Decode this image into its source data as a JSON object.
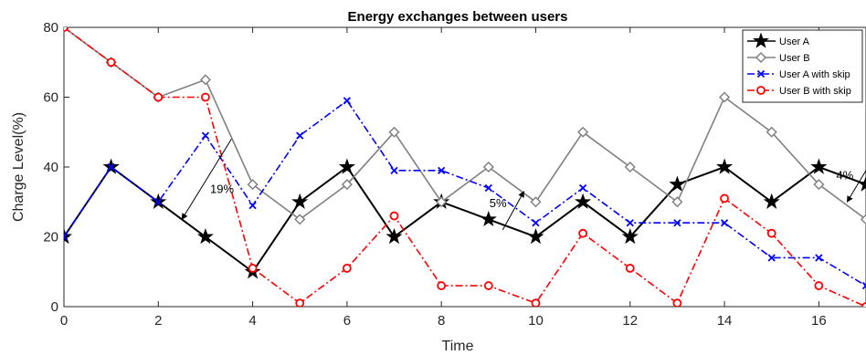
{
  "chart_data": {
    "type": "line",
    "title": "Energy exchanges between users",
    "xlabel": "Time",
    "ylabel": "Charge Level(%)",
    "xlim": [
      0,
      17
    ],
    "ylim": [
      0,
      80
    ],
    "xticks": [
      0,
      2,
      4,
      6,
      8,
      10,
      12,
      14,
      16
    ],
    "yticks": [
      0,
      20,
      40,
      60,
      80
    ],
    "grid": false,
    "legend_position": "top-right",
    "series": [
      {
        "name": "User A",
        "color": "#000000",
        "dash": "solid",
        "marker": "star",
        "x": [
          0,
          1,
          2,
          3,
          4,
          5,
          6,
          7,
          8,
          9,
          10,
          11,
          12,
          13,
          14,
          15,
          16,
          17
        ],
        "y": [
          20,
          40,
          30,
          20,
          10,
          30,
          40,
          20,
          30,
          25,
          20,
          30,
          20,
          35,
          40,
          30,
          40,
          35
        ]
      },
      {
        "name": "User B",
        "color": "#808080",
        "dash": "solid",
        "marker": "diamond",
        "x": [
          0,
          1,
          2,
          3,
          4,
          5,
          6,
          7,
          8,
          9,
          10,
          11,
          12,
          13,
          14,
          15,
          16,
          17
        ],
        "y": [
          80,
          70,
          60,
          65,
          35,
          25,
          35,
          50,
          30,
          40,
          30,
          50,
          40,
          30,
          60,
          50,
          35,
          25
        ]
      },
      {
        "name": "User A with skip",
        "color": "#0000ff",
        "dash": "dashdot",
        "marker": "x",
        "x": [
          0,
          1,
          2,
          3,
          4,
          5,
          6,
          7,
          8,
          9,
          10,
          11,
          12,
          13,
          14,
          15,
          16,
          17
        ],
        "y": [
          20,
          40,
          30,
          49,
          29,
          49,
          59,
          39,
          39,
          34,
          24,
          34,
          24,
          24,
          24,
          14,
          14,
          6
        ]
      },
      {
        "name": "User B with skip",
        "color": "#ff0000",
        "dash": "dashdot",
        "marker": "circle",
        "x": [
          0,
          1,
          2,
          3,
          4,
          5,
          6,
          7,
          8,
          9,
          10,
          11,
          12,
          13,
          14,
          15,
          16,
          17
        ],
        "y": [
          80,
          70,
          60,
          60,
          11,
          1,
          11,
          26,
          6,
          6,
          1,
          21,
          11,
          1,
          31,
          21,
          6,
          0
        ]
      }
    ],
    "annotations": [
      {
        "text": "19%",
        "text_at": [
          3.35,
          32.5
        ],
        "arrow_from": [
          3.55,
          48
        ],
        "arrow_to": [
          2.5,
          25
        ]
      },
      {
        "text": "5%",
        "text_at": [
          9.2,
          28.5
        ],
        "arrow_from": [
          9.3,
          22
        ],
        "arrow_to": [
          9.75,
          33
        ]
      },
      {
        "text": "4%",
        "text_at": [
          16.55,
          36.5
        ],
        "arrow_from": [
          17,
          39
        ],
        "arrow_to": [
          16.6,
          30
        ]
      }
    ]
  }
}
